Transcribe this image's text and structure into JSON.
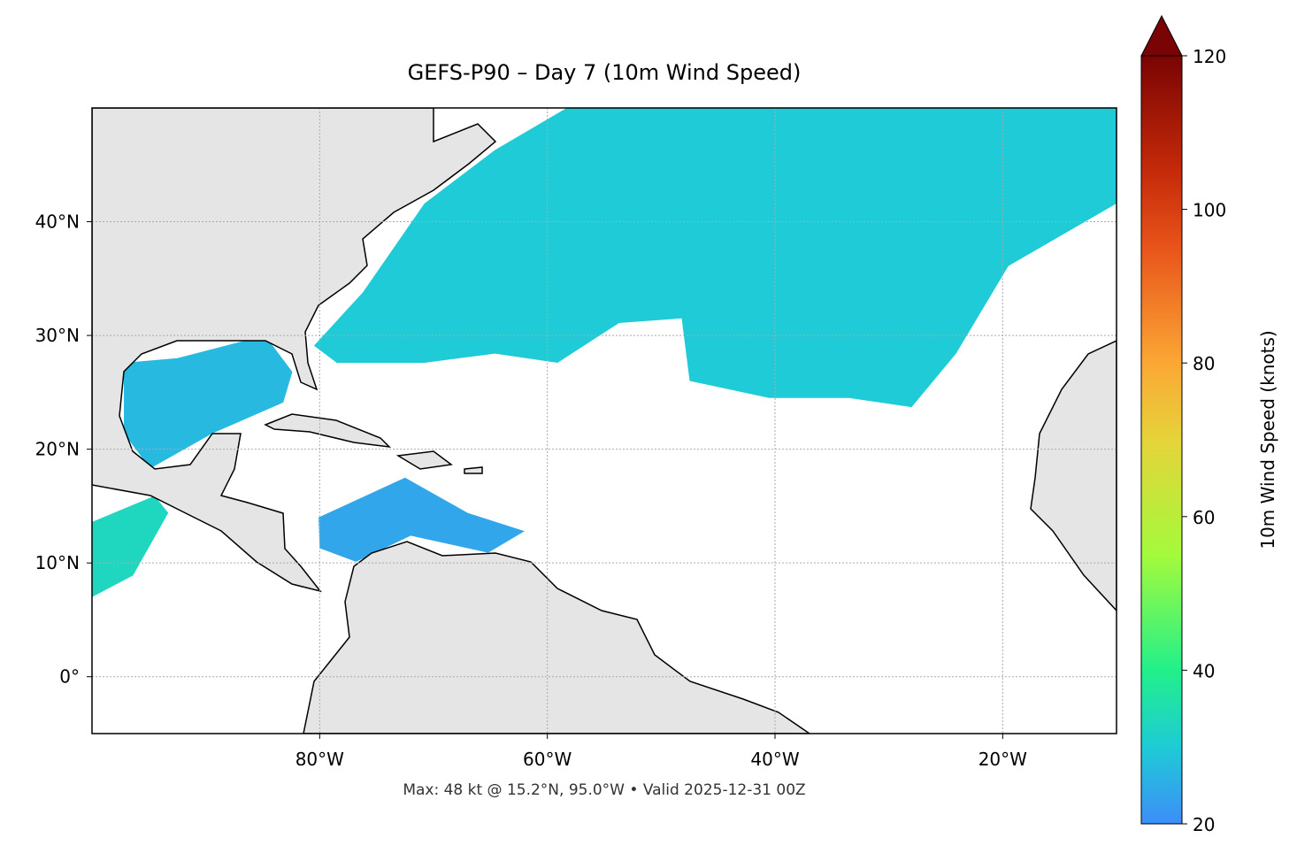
{
  "chart_data": {
    "type": "map",
    "title": "GEFS-P90 – Day 7 (10m Wind Speed)",
    "footer": "Max: 48 kt @ 15.2°N, 95.0°W • Valid 2025-12-31 00Z",
    "xlim": [
      -100,
      -10
    ],
    "ylim": [
      -5,
      50
    ],
    "xticks": [
      {
        "value": -80,
        "label": "80°W"
      },
      {
        "value": -60,
        "label": "60°W"
      },
      {
        "value": -40,
        "label": "40°W"
      },
      {
        "value": -20,
        "label": "20°W"
      }
    ],
    "yticks": [
      {
        "value": 0,
        "label": "0°"
      },
      {
        "value": 10,
        "label": "10°N"
      },
      {
        "value": 20,
        "label": "20°N"
      },
      {
        "value": 30,
        "label": "30°N"
      },
      {
        "value": 40,
        "label": "40°N"
      }
    ],
    "grid": true,
    "colorbar": {
      "label": "10m Wind Speed (knots)",
      "clim": [
        20,
        120
      ],
      "ticks": [
        20,
        40,
        60,
        80,
        100,
        120
      ],
      "extend": "max"
    },
    "colormap": [
      [
        20,
        "#3d8ef8"
      ],
      [
        30,
        "#1ecbd6"
      ],
      [
        40,
        "#22f08a"
      ],
      [
        55,
        "#a4fa3c"
      ],
      [
        70,
        "#e6d33a"
      ],
      [
        80,
        "#fba735"
      ],
      [
        95,
        "#e8541a"
      ],
      [
        105,
        "#c52a0a"
      ],
      [
        120,
        "#7a0403"
      ]
    ],
    "wind_areas": [
      {
        "speed": 30,
        "lonlat": [
          [
            -76.2,
            33.8
          ],
          [
            -70.8,
            41.6
          ],
          [
            -64.6,
            46.3
          ],
          [
            -58.3,
            50
          ],
          [
            -10,
            50
          ],
          [
            -10,
            41.6
          ],
          [
            -19.5,
            36.1
          ],
          [
            -24.1,
            28.4
          ],
          [
            -28,
            23.7
          ],
          [
            -33.5,
            24.5
          ],
          [
            -40.5,
            24.5
          ],
          [
            -47.5,
            26
          ],
          [
            -48.2,
            31.5
          ],
          [
            -53.7,
            31.1
          ],
          [
            -59.1,
            27.6
          ],
          [
            -64.6,
            28.4
          ],
          [
            -70.8,
            27.6
          ],
          [
            -78.5,
            27.6
          ],
          [
            -80.5,
            29.1
          ]
        ]
      },
      {
        "speed": 27,
        "lonlat": [
          [
            -97.2,
            27.6
          ],
          [
            -92.5,
            28
          ],
          [
            -84.8,
            30
          ],
          [
            -82.4,
            26.8
          ],
          [
            -83.2,
            24.1
          ],
          [
            -89.4,
            21.4
          ],
          [
            -94.9,
            18.3
          ],
          [
            -97.2,
            21.4
          ]
        ]
      },
      {
        "speed": 24,
        "lonlat": [
          [
            -80.1,
            14
          ],
          [
            -72.5,
            17.5
          ],
          [
            -67,
            14.4
          ],
          [
            -62,
            12.8
          ],
          [
            -65.2,
            10.9
          ],
          [
            -72,
            12.4
          ],
          [
            -76.8,
            10.1
          ],
          [
            -80,
            11.3
          ]
        ]
      },
      {
        "speed": 33,
        "lonlat": [
          [
            -100,
            13.6
          ],
          [
            -94.5,
            15.9
          ],
          [
            -93.3,
            14.4
          ],
          [
            -96.4,
            8.9
          ],
          [
            -100,
            7
          ]
        ]
      }
    ]
  }
}
